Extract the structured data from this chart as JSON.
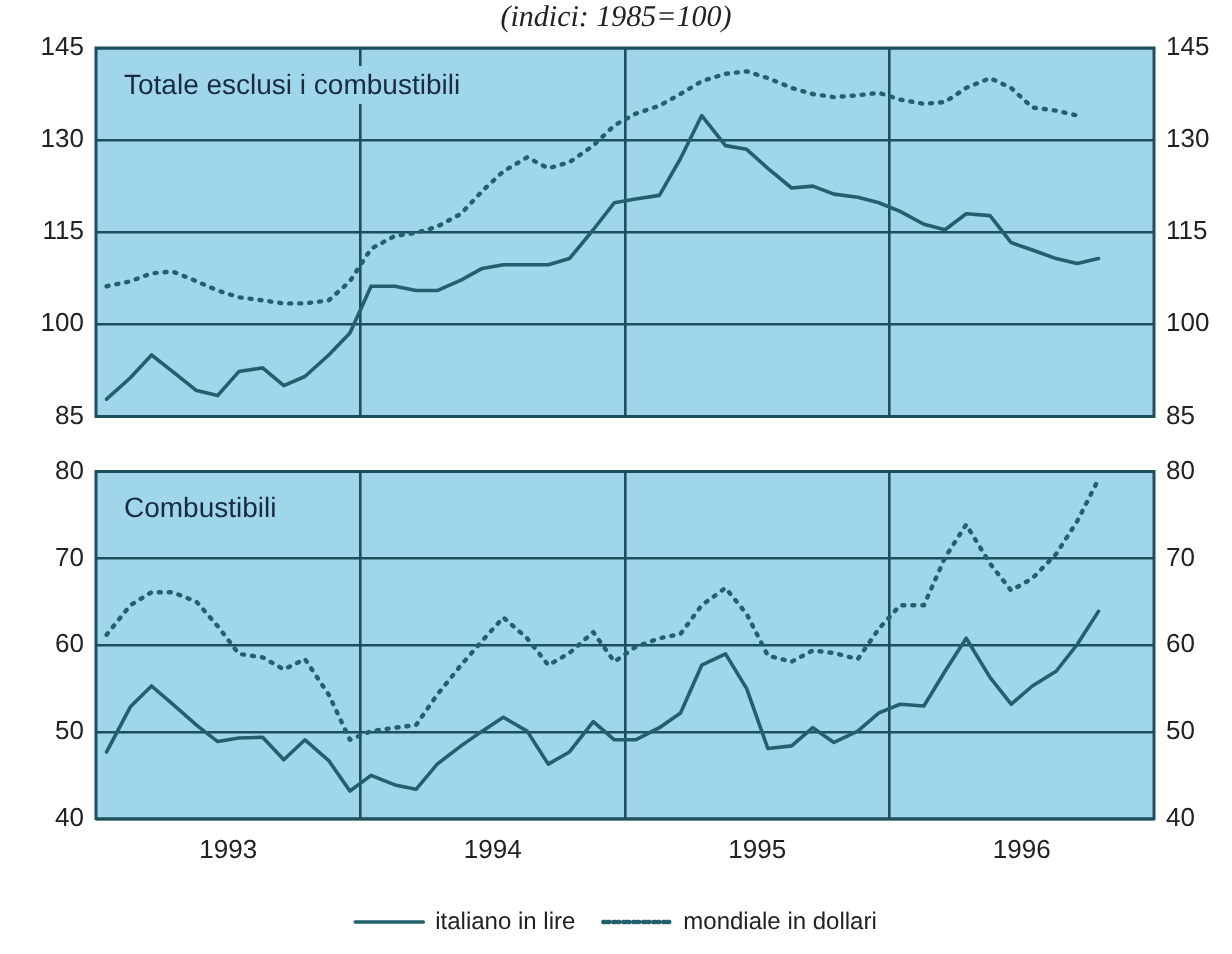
{
  "chart_data": [
    {
      "type": "line",
      "title": "(indici: 1985=100)",
      "annotations": [
        "Totale esclusi i combustibili"
      ],
      "x": [
        1993.04,
        1993.13,
        1993.21,
        1993.29,
        1993.38,
        1993.46,
        1993.54,
        1993.63,
        1993.71,
        1993.79,
        1993.88,
        1993.96,
        1994.04,
        1994.13,
        1994.21,
        1994.29,
        1994.38,
        1994.46,
        1994.54,
        1994.63,
        1994.71,
        1994.79,
        1994.88,
        1994.96,
        1995.04,
        1995.13,
        1995.21,
        1995.29,
        1995.38,
        1995.46,
        1995.54,
        1995.63,
        1995.71,
        1995.79,
        1995.88,
        1995.96,
        1996.04,
        1996.13,
        1996.21,
        1996.29,
        1996.38,
        1996.46,
        1996.54,
        1996.63,
        1996.71,
        1996.79
      ],
      "series": [
        {
          "color": "#23606e",
          "line_style": "solid",
          "values": [
            87.8,
            91.3,
            95.0,
            92.3,
            89.2,
            88.4,
            92.3,
            92.9,
            90.0,
            91.5,
            95.0,
            98.6,
            106.2,
            106.2,
            105.5,
            105.5,
            107.2,
            109.1,
            109.7,
            109.7,
            109.7,
            110.7,
            115.4,
            119.8,
            120.4,
            121.0,
            127.0,
            134.0,
            129.1,
            128.5,
            125.4,
            122.2,
            122.5,
            121.2,
            120.7,
            119.8,
            118.4,
            116.3,
            115.4,
            118.0,
            117.7,
            113.3,
            112.1,
            110.7,
            109.9,
            110.7
          ]
        },
        {
          "color": "#23606e",
          "line_style": "dotted",
          "values": [
            106.2,
            107.0,
            108.3,
            108.6,
            107.0,
            105.5,
            104.4,
            103.9,
            103.4,
            103.4,
            103.9,
            107.0,
            112.3,
            114.4,
            114.9,
            115.9,
            118.0,
            121.7,
            124.9,
            127.2,
            125.4,
            126.4,
            129.1,
            132.4,
            134.3,
            135.6,
            137.5,
            139.6,
            140.8,
            141.2,
            140.1,
            138.5,
            137.5,
            137.0,
            137.3,
            137.7,
            136.6,
            135.9,
            136.2,
            138.5,
            140.1,
            138.5,
            135.3,
            134.8,
            134.0,
            null
          ]
        }
      ],
      "xlim": [
        1993,
        1997
      ],
      "xticks": [
        {
          "value": 1994,
          "label": null
        },
        {
          "value": 1995,
          "label": null
        },
        {
          "value": 1996,
          "label": null
        }
      ],
      "ylim": [
        85,
        145
      ],
      "yticks": [
        85,
        100,
        115,
        130,
        145
      ],
      "y2lim": [
        85,
        145
      ],
      "y2ticks": [
        85,
        100,
        115,
        130,
        145
      ],
      "grid": true,
      "legend": false,
      "tick_labels": "y"
    },
    {
      "type": "line",
      "annotations": [
        "Combustibili"
      ],
      "x": [
        1993.04,
        1993.13,
        1993.21,
        1993.29,
        1993.38,
        1993.46,
        1993.54,
        1993.63,
        1993.71,
        1993.79,
        1993.88,
        1993.96,
        1994.04,
        1994.13,
        1994.21,
        1994.29,
        1994.38,
        1994.46,
        1994.54,
        1994.63,
        1994.71,
        1994.79,
        1994.88,
        1994.96,
        1995.04,
        1995.13,
        1995.21,
        1995.29,
        1995.38,
        1995.46,
        1995.54,
        1995.63,
        1995.71,
        1995.79,
        1995.88,
        1995.96,
        1996.04,
        1996.13,
        1996.21,
        1996.29,
        1996.38,
        1996.46,
        1996.54,
        1996.63,
        1996.71,
        1996.79
      ],
      "series": [
        {
          "name": "italiano in lire",
          "color": "#23606e",
          "line_style": "solid",
          "values": [
            47.7,
            52.9,
            55.3,
            53.2,
            50.8,
            48.9,
            49.3,
            49.4,
            46.8,
            49.1,
            46.7,
            43.2,
            45.0,
            43.9,
            43.4,
            46.3,
            48.4,
            50.1,
            51.7,
            50.1,
            46.3,
            47.7,
            51.2,
            49.1,
            49.1,
            50.5,
            52.2,
            57.7,
            59.0,
            55.0,
            48.1,
            48.4,
            50.5,
            48.8,
            50.1,
            52.2,
            53.2,
            53.0,
            57.0,
            60.8,
            56.3,
            53.2,
            55.3,
            57.0,
            60.1,
            63.9
          ]
        },
        {
          "name": "mondiale in dollari",
          "color": "#23606e",
          "line_style": "dotted",
          "values": [
            61.2,
            64.6,
            66.1,
            66.1,
            65.0,
            62.2,
            59.0,
            58.6,
            57.2,
            58.4,
            54.3,
            49.1,
            50.1,
            50.5,
            50.8,
            54.3,
            57.7,
            60.5,
            63.2,
            60.8,
            57.7,
            59.1,
            61.5,
            58.1,
            59.8,
            60.8,
            61.3,
            64.6,
            66.6,
            63.6,
            58.8,
            58.1,
            59.4,
            59.1,
            58.4,
            61.9,
            64.6,
            64.6,
            70.1,
            73.9,
            69.4,
            66.3,
            67.7,
            70.5,
            74.3,
            79.1
          ]
        }
      ],
      "xlim": [
        1993,
        1997
      ],
      "xticks": [
        {
          "value": 1993.5,
          "label": "1993"
        },
        {
          "value": 1994,
          "label": null
        },
        {
          "value": 1994.5,
          "label": "1994"
        },
        {
          "value": 1995,
          "label": null
        },
        {
          "value": 1995.5,
          "label": "1995"
        },
        {
          "value": 1996,
          "label": null
        },
        {
          "value": 1996.5,
          "label": "1996"
        }
      ],
      "ylim": [
        40,
        80
      ],
      "yticks": [
        40,
        50,
        60,
        70,
        80
      ],
      "y2lim": [
        40,
        80
      ],
      "y2ticks": [
        40,
        50,
        60,
        70,
        80
      ],
      "grid": true,
      "legend": "bottom"
    }
  ]
}
